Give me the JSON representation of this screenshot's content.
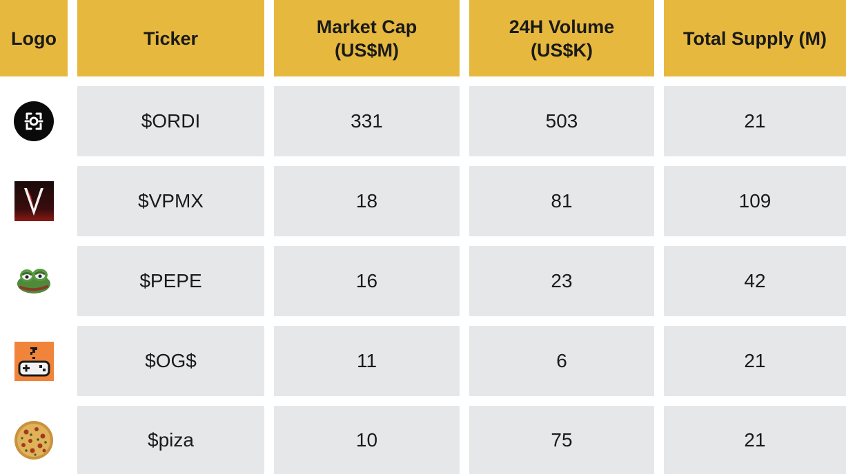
{
  "table": {
    "headers": {
      "logo": "Logo",
      "ticker": "Ticker",
      "market_cap": "Market Cap\n(US$M)",
      "volume": "24H Volume\n(US$K)",
      "supply": "Total Supply (M)"
    },
    "rows": [
      {
        "icon": "ordi-logo-icon",
        "ticker": "$ORDI",
        "market_cap": "331",
        "volume": "503",
        "supply": "21"
      },
      {
        "icon": "vpmx-logo-icon",
        "ticker": "$VPMX",
        "market_cap": "18",
        "volume": "81",
        "supply": "109"
      },
      {
        "icon": "pepe-frog-icon",
        "ticker": "$PEPE",
        "market_cap": "16",
        "volume": "23",
        "supply": "42"
      },
      {
        "icon": "gamepad-question-icon",
        "ticker": "$OG$",
        "market_cap": "11",
        "volume": "6",
        "supply": "21"
      },
      {
        "icon": "pizza-icon",
        "ticker": "$piza",
        "market_cap": "10",
        "volume": "75",
        "supply": "21"
      }
    ]
  },
  "colors": {
    "header_bg": "#e6b83e",
    "cell_bg": "#e6e7e8",
    "text": "#1a1a1a"
  }
}
